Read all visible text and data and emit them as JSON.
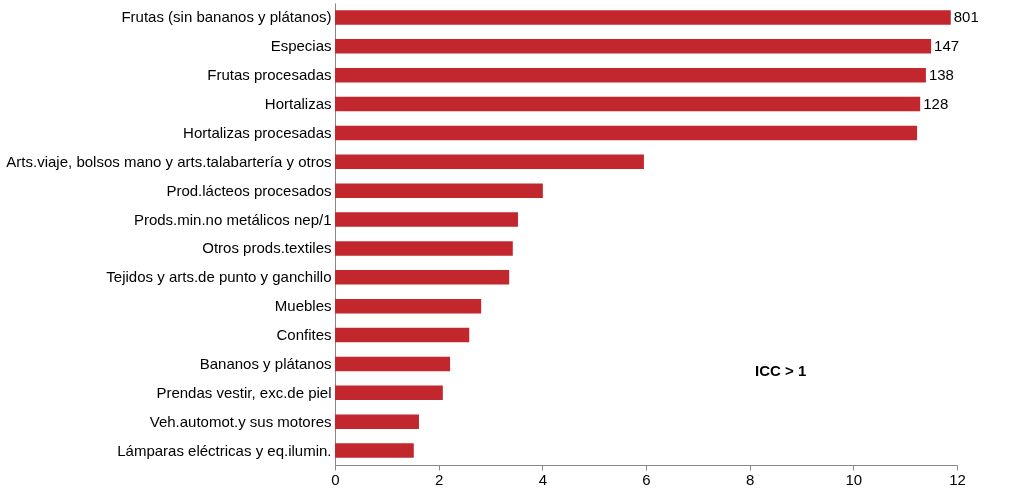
{
  "chart_data": {
    "type": "bar",
    "orientation": "horizontal",
    "categories": [
      "Frutas (sin bananos y plátanos)",
      "Especias",
      "Frutas procesadas",
      "Hortalizas",
      "Hortalizas procesadas",
      "Arts.viaje, bolsos mano y arts.talabartería y otros",
      "Prod.lácteos procesados",
      "Prods.min.no metálicos nep/1",
      "Otros prods.textiles",
      "Tejidos y arts.de punto y ganchillo",
      "Muebles",
      "Confites",
      "Bananos y plátanos",
      "Prendas vestir, exc.de piel",
      "Veh.automot.y sus motores",
      "Lámparas eléctricas y eq.ilumin."
    ],
    "values": [
      11.88,
      11.5,
      11.4,
      11.29,
      11.23,
      5.96,
      4.01,
      3.53,
      3.43,
      3.36,
      2.82,
      2.59,
      2.22,
      2.08,
      1.62,
      1.52
    ],
    "color": "#c1272d",
    "xlim": [
      0,
      12
    ],
    "xticks": [
      0,
      2,
      4,
      6,
      8,
      10,
      12
    ],
    "grid": false,
    "annotations": [
      {
        "text": "801",
        "x": 11.88,
        "y": "Frutas (sin bananos y plátanos)"
      },
      {
        "text": "147",
        "x": 11.5,
        "y": "Especias"
      },
      {
        "text": "138",
        "x": 11.4,
        "y": "Frutas procesadas"
      },
      {
        "text": "128",
        "x": 11.29,
        "y": "Hortalizas"
      },
      "ICC > 1"
    ]
  }
}
